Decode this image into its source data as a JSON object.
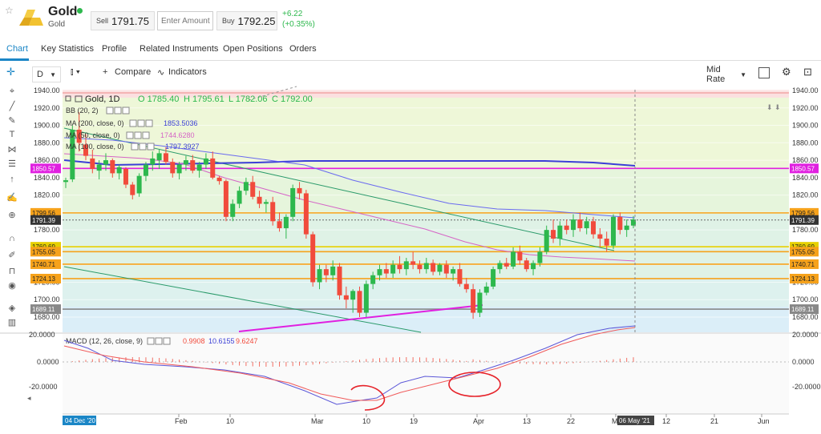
{
  "header": {
    "title": "Gold",
    "subtitle": "Gold",
    "sell_label": "Sell",
    "sell_price": "1791.75",
    "amount_placeholder": "Enter Amount",
    "buy_label": "Buy",
    "buy_price": "1792.25",
    "change": "+6.22",
    "change_pct": "(+0.35%)"
  },
  "tabs": [
    "Chart",
    "Key Statistics",
    "Profile",
    "Related Instruments",
    "Open Positions",
    "Orders"
  ],
  "toolbar": {
    "interval": "D",
    "compare_label": "Compare",
    "indicators_label": "Indicators",
    "rate_label": "Mid Rate"
  },
  "legend": {
    "title": "Gold, 1D",
    "open": "O 1785.40",
    "high": "H 1795.61",
    "low": "L 1782.06",
    "close": "C 1792.00",
    "bb": "BB (20, 2)",
    "ma200": "MA (200, close, 0)",
    "ma200_val": "1853.5036",
    "ma50": "MA (50, close, 0)",
    "ma50_val": "1744.6280",
    "ma100": "MA (100, close, 0)",
    "ma100_val": "1797.3927",
    "macd": "MACD (12, 26, close, 9)",
    "macd_v1": "0.9908",
    "macd_v2": "10.6155",
    "macd_v3": "9.6247"
  },
  "colors": {
    "up": "#2db84d",
    "down": "#f14b3c",
    "accent": "#1b86c6",
    "ma200": "#3b3fd6",
    "ma50": "#d564c6",
    "trend": "#2a9a6a",
    "support": "#e040fb",
    "hline": "#f6a21b"
  },
  "chart_data": {
    "type": "candlestick",
    "ylim": [
      1670,
      1945
    ],
    "y_ticks": [
      1680,
      1700,
      1720,
      1740,
      1760,
      1780,
      1800,
      1820,
      1840,
      1860,
      1880,
      1900,
      1920,
      1940
    ],
    "y_tick_labels": [
      "1680.00",
      "1700.00",
      "1720.00",
      "1740.00",
      "1760.00",
      "1780.00",
      "1800.00",
      "1820.00",
      "1840.00",
      "1860.00",
      "1880.00",
      "1900.00",
      "1920.00",
      "1940.00"
    ],
    "x_labels": [
      "Feb",
      "10",
      "Mar",
      "10",
      "19",
      "Apr",
      "13",
      "22",
      "Ma",
      "12",
      "21",
      "Jun"
    ],
    "x_label_left": "04 Dec '20",
    "x_label_cursor": "06 May '21",
    "level_tags": [
      {
        "label": "1850.57",
        "value": 1850.57,
        "color": "#e020e0"
      },
      {
        "label": "1799.56",
        "value": 1799.56,
        "color": "#f6a21b"
      },
      {
        "label": "1791.39",
        "value": 1791.39,
        "color": "#333333"
      },
      {
        "label": "1760.69",
        "value": 1760.69,
        "color": "#e6d000"
      },
      {
        "label": "1755.05",
        "value": 1755.05,
        "color": "#f6a21b"
      },
      {
        "label": "1740.71",
        "value": 1740.71,
        "color": "#f6a21b"
      },
      {
        "label": "1724.13",
        "value": 1724.13,
        "color": "#f6a21b"
      },
      {
        "label": "1689.11",
        "value": 1689.11,
        "color": "#888888"
      }
    ],
    "candles_ohlc": [
      [
        1835,
        1840,
        1828,
        1837
      ],
      [
        1838,
        1900,
        1835,
        1895
      ],
      [
        1895,
        1915,
        1870,
        1880
      ],
      [
        1878,
        1890,
        1860,
        1865
      ],
      [
        1862,
        1872,
        1845,
        1850
      ],
      [
        1848,
        1860,
        1838,
        1855
      ],
      [
        1855,
        1868,
        1848,
        1860
      ],
      [
        1860,
        1862,
        1840,
        1845
      ],
      [
        1845,
        1855,
        1838,
        1852
      ],
      [
        1850,
        1852,
        1828,
        1832
      ],
      [
        1832,
        1835,
        1815,
        1820
      ],
      [
        1822,
        1845,
        1818,
        1842
      ],
      [
        1842,
        1858,
        1836,
        1855
      ],
      [
        1855,
        1870,
        1848,
        1862
      ],
      [
        1860,
        1872,
        1850,
        1868
      ],
      [
        1868,
        1875,
        1855,
        1858
      ],
      [
        1858,
        1862,
        1840,
        1845
      ],
      [
        1845,
        1858,
        1838,
        1855
      ],
      [
        1855,
        1865,
        1848,
        1860
      ],
      [
        1860,
        1866,
        1845,
        1848
      ],
      [
        1848,
        1858,
        1840,
        1855
      ],
      [
        1855,
        1868,
        1850,
        1862
      ],
      [
        1862,
        1870,
        1838,
        1840
      ],
      [
        1840,
        1842,
        1832,
        1836
      ],
      [
        1836,
        1838,
        1790,
        1795
      ],
      [
        1795,
        1815,
        1790,
        1810
      ],
      [
        1810,
        1830,
        1805,
        1825
      ],
      [
        1825,
        1840,
        1820,
        1835
      ],
      [
        1835,
        1842,
        1815,
        1818
      ],
      [
        1818,
        1825,
        1805,
        1810
      ],
      [
        1810,
        1815,
        1800,
        1812
      ],
      [
        1812,
        1818,
        1785,
        1790
      ],
      [
        1790,
        1800,
        1778,
        1782
      ],
      [
        1782,
        1798,
        1770,
        1795
      ],
      [
        1795,
        1832,
        1790,
        1828
      ],
      [
        1828,
        1835,
        1815,
        1822
      ],
      [
        1822,
        1826,
        1770,
        1775
      ],
      [
        1775,
        1778,
        1715,
        1720
      ],
      [
        1720,
        1740,
        1712,
        1735
      ],
      [
        1735,
        1740,
        1720,
        1728
      ],
      [
        1728,
        1745,
        1722,
        1738
      ],
      [
        1738,
        1742,
        1700,
        1705
      ],
      [
        1705,
        1715,
        1690,
        1700
      ],
      [
        1700,
        1712,
        1685,
        1710
      ],
      [
        1710,
        1715,
        1680,
        1685
      ],
      [
        1685,
        1722,
        1680,
        1718
      ],
      [
        1718,
        1732,
        1712,
        1728
      ],
      [
        1728,
        1740,
        1722,
        1735
      ],
      [
        1735,
        1742,
        1725,
        1730
      ],
      [
        1730,
        1745,
        1725,
        1740
      ],
      [
        1740,
        1750,
        1730,
        1735
      ],
      [
        1735,
        1748,
        1728,
        1744
      ],
      [
        1744,
        1755,
        1735,
        1740
      ],
      [
        1740,
        1745,
        1730,
        1735
      ],
      [
        1735,
        1748,
        1730,
        1742
      ],
      [
        1742,
        1746,
        1728,
        1732
      ],
      [
        1732,
        1742,
        1728,
        1740
      ],
      [
        1740,
        1745,
        1725,
        1730
      ],
      [
        1730,
        1738,
        1722,
        1735
      ],
      [
        1735,
        1742,
        1715,
        1718
      ],
      [
        1718,
        1725,
        1708,
        1712
      ],
      [
        1712,
        1718,
        1678,
        1685
      ],
      [
        1685,
        1712,
        1680,
        1708
      ],
      [
        1708,
        1720,
        1705,
        1715
      ],
      [
        1715,
        1738,
        1712,
        1735
      ],
      [
        1735,
        1745,
        1730,
        1742
      ],
      [
        1742,
        1748,
        1735,
        1738
      ],
      [
        1738,
        1760,
        1735,
        1755
      ],
      [
        1755,
        1762,
        1740,
        1745
      ],
      [
        1745,
        1748,
        1732,
        1735
      ],
      [
        1735,
        1745,
        1728,
        1742
      ],
      [
        1742,
        1760,
        1738,
        1755
      ],
      [
        1755,
        1785,
        1752,
        1780
      ],
      [
        1780,
        1792,
        1765,
        1770
      ],
      [
        1770,
        1790,
        1762,
        1785
      ],
      [
        1785,
        1792,
        1775,
        1780
      ],
      [
        1780,
        1798,
        1772,
        1792
      ],
      [
        1792,
        1800,
        1778,
        1782
      ],
      [
        1782,
        1795,
        1775,
        1790
      ],
      [
        1790,
        1795,
        1770,
        1775
      ],
      [
        1775,
        1782,
        1760,
        1770
      ],
      [
        1770,
        1778,
        1755,
        1762
      ],
      [
        1762,
        1798,
        1758,
        1795
      ],
      [
        1795,
        1800,
        1775,
        1780
      ],
      [
        1780,
        1792,
        1772,
        1785
      ],
      [
        1785,
        1796,
        1782,
        1792
      ]
    ]
  }
}
